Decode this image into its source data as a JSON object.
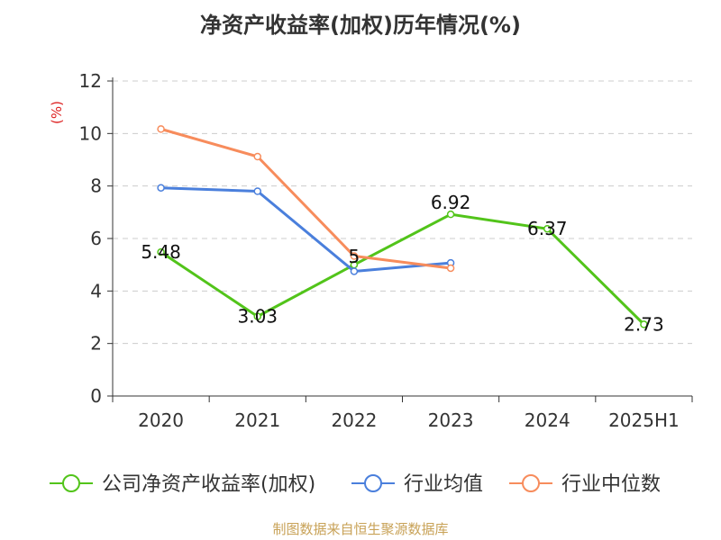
{
  "chart_data": {
    "type": "line",
    "title": "净资产收益率(加权)历年情况(%)",
    "ylabel": "(%)",
    "categories": [
      "2020",
      "2021",
      "2022",
      "2023",
      "2024",
      "2025H1"
    ],
    "ylim": [
      0,
      12
    ],
    "yticks": [
      "0",
      "2",
      "4",
      "6",
      "8",
      "10",
      "12"
    ],
    "grid": "horizontal-dashed",
    "legend_position": "bottom",
    "series": [
      {
        "name": "公司净资产收益率(加权)",
        "color": "#52c41a",
        "values": [
          5.48,
          3.03,
          5,
          6.92,
          6.37,
          2.73
        ],
        "labels": [
          "5.48",
          "3.03",
          "5",
          "6.92",
          "6.37",
          "2.73"
        ]
      },
      {
        "name": "行业均值",
        "color": "#4a7fdc",
        "values": [
          7.93,
          7.8,
          4.75,
          5.07,
          null,
          null
        ]
      },
      {
        "name": "行业中位数",
        "color": "#f78c5c",
        "values": [
          10.17,
          9.12,
          5.33,
          4.87,
          null,
          null
        ]
      }
    ]
  },
  "footer": {
    "source": "制图数据来自恒生聚源数据库"
  }
}
